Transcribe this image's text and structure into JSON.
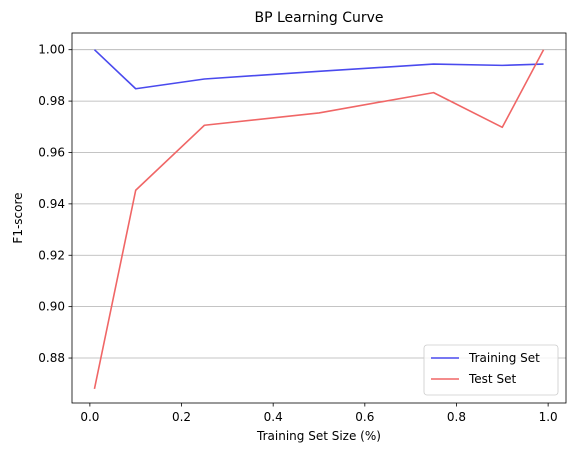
{
  "chart_data": {
    "type": "line",
    "title": "BP Learning Curve",
    "xlabel": "Training Set Size (%)",
    "ylabel": "F1-score",
    "xlim": [
      -0.039,
      1.039
    ],
    "ylim": [
      0.8625,
      1.0065
    ],
    "xticks": [
      0.0,
      0.2,
      0.4,
      0.6,
      0.8,
      1.0
    ],
    "xtick_labels": [
      "0.0",
      "0.2",
      "0.4",
      "0.6",
      "0.8",
      "1.0"
    ],
    "yticks": [
      0.88,
      0.9,
      0.92,
      0.94,
      0.96,
      0.98,
      1.0
    ],
    "ytick_labels": [
      "0.88",
      "0.90",
      "0.92",
      "0.94",
      "0.96",
      "0.98",
      "1.00"
    ],
    "grid": "y-axis",
    "legend_position": "lower-right",
    "x": [
      0.01,
      0.1,
      0.25,
      0.5,
      0.75,
      0.9,
      0.99
    ],
    "series": [
      {
        "name": "Training Set",
        "color": "#4a4aee",
        "values": [
          1.0,
          0.9848,
          0.9886,
          0.9916,
          0.9944,
          0.9939,
          0.9944
        ]
      },
      {
        "name": "Test Set",
        "color": "#f06666",
        "values": [
          0.868,
          0.9453,
          0.9706,
          0.9754,
          0.9833,
          0.9698,
          1.0
        ]
      }
    ]
  }
}
